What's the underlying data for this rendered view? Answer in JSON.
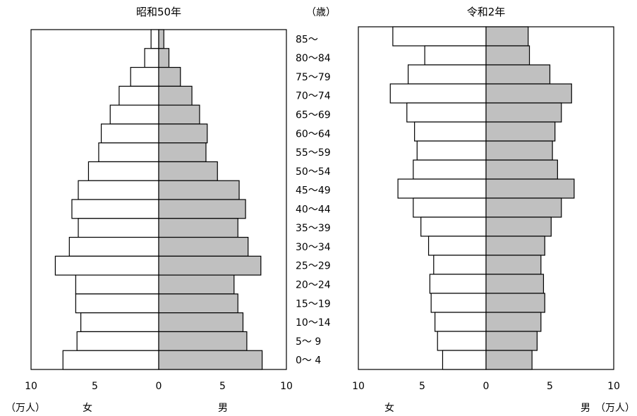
{
  "chart_data": [
    {
      "type": "bar",
      "title": "昭和50年",
      "categories": [
        "85～",
        "80～84",
        "75～79",
        "70～74",
        "65～69",
        "60～64",
        "55～59",
        "50～54",
        "45～49",
        "40～44",
        "35～39",
        "30～34",
        "25～29",
        "20～24",
        "15～19",
        "10～14",
        "5～ 9",
        "0～ 4"
      ],
      "series": [
        {
          "name": "女",
          "values": [
            0.6,
            1.1,
            2.2,
            3.1,
            3.8,
            4.5,
            4.7,
            5.5,
            6.3,
            6.8,
            6.3,
            7.0,
            8.1,
            6.5,
            6.5,
            6.1,
            6.4,
            7.5
          ],
          "color": "#ffffff"
        },
        {
          "name": "男",
          "values": [
            0.4,
            0.8,
            1.7,
            2.6,
            3.2,
            3.8,
            3.7,
            4.6,
            6.3,
            6.8,
            6.2,
            7.0,
            8.0,
            5.9,
            6.2,
            6.6,
            6.9,
            8.1
          ],
          "color": "#c0c0c0"
        }
      ],
      "xlim": [
        -10,
        10
      ],
      "xticks": [
        "10",
        "5",
        "0",
        "5",
        "10"
      ],
      "unit": "（万人）",
      "left_label": "女",
      "right_label": "男"
    },
    {
      "type": "bar",
      "title": "令和2年",
      "categories": [
        "85～",
        "80～84",
        "75～79",
        "70～74",
        "65～69",
        "60～64",
        "55～59",
        "50～54",
        "45～49",
        "40～44",
        "35～39",
        "30～34",
        "25～29",
        "20～24",
        "15～19",
        "10～14",
        "5～ 9",
        "0～ 4"
      ],
      "series": [
        {
          "name": "女",
          "values": [
            7.3,
            4.8,
            6.1,
            7.5,
            6.2,
            5.6,
            5.4,
            5.7,
            6.9,
            5.7,
            5.1,
            4.5,
            4.1,
            4.4,
            4.3,
            4.0,
            3.8,
            3.4
          ],
          "color": "#ffffff"
        },
        {
          "name": "男",
          "values": [
            3.3,
            3.4,
            5.0,
            6.7,
            5.9,
            5.4,
            5.2,
            5.6,
            6.9,
            5.9,
            5.1,
            4.6,
            4.3,
            4.5,
            4.6,
            4.3,
            4.0,
            3.6
          ],
          "color": "#c0c0c0"
        }
      ],
      "xlim": [
        -10,
        10
      ],
      "xticks": [
        "10",
        "5",
        "0",
        "5",
        "10"
      ],
      "unit": "（万人）",
      "left_label": "女",
      "right_label": "男"
    }
  ],
  "age_axis_label": "（歳）",
  "age_labels": [
    "85～",
    "80～84",
    "75～79",
    "70～74",
    "65～69",
    "60～64",
    "55～59",
    "50～54",
    "45～49",
    "40～44",
    "35～39",
    "30～34",
    "25～29",
    "20～24",
    "15～19",
    "10～14",
    "5～ 9",
    "0～ 4"
  ]
}
